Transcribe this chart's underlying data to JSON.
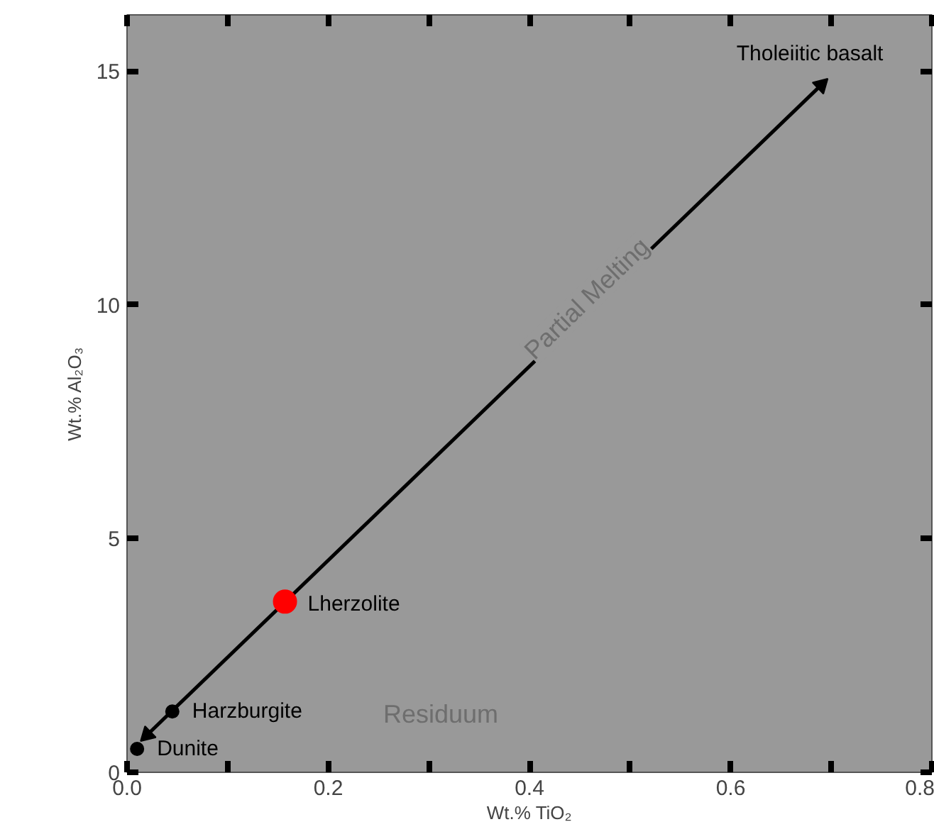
{
  "chart_data": {
    "type": "scatter",
    "xlabel": "Wt.% TiO₂",
    "ylabel": "Wt.% Al₂O₃",
    "xlim": [
      0,
      0.8
    ],
    "ylim": [
      0,
      16.2
    ],
    "xticks": [
      {
        "value": 0,
        "label": "0.0"
      },
      {
        "value": 0.1,
        "label": null
      },
      {
        "value": 0.2,
        "label": "0.2"
      },
      {
        "value": 0.3,
        "label": null
      },
      {
        "value": 0.4,
        "label": "0.4"
      },
      {
        "value": 0.5,
        "label": null
      },
      {
        "value": 0.6,
        "label": "0.6"
      },
      {
        "value": 0.7,
        "label": null
      },
      {
        "value": 0.8,
        "label": "0.8"
      }
    ],
    "yticks": [
      0,
      5,
      10,
      15
    ],
    "marker": "circle",
    "grid": false,
    "series": [
      {
        "type": "line",
        "marker": "triangle",
        "color": "#000000",
        "x": [
          0.02,
          0.69
        ],
        "values": [
          0.8,
          14.7
        ]
      },
      {
        "color": "#000000",
        "x": [
          0.01,
          0.045
        ],
        "values": [
          0.5,
          1.3
        ]
      },
      {
        "color": "#ff0000",
        "x": [
          0.157
        ],
        "values": [
          3.65
        ]
      }
    ],
    "annotations": [
      {
        "text": "Dunite",
        "x": 0.01,
        "y": 0.5
      },
      {
        "text": "Harzburgite",
        "x": 0.045,
        "y": 1.3
      },
      {
        "text": "Lherzolite",
        "x": 0.157,
        "y": 3.65
      },
      {
        "text": "Tholeiitic basalt",
        "x": 0.69,
        "y": 14.7
      },
      "Partial Melting",
      "Residuum"
    ]
  }
}
